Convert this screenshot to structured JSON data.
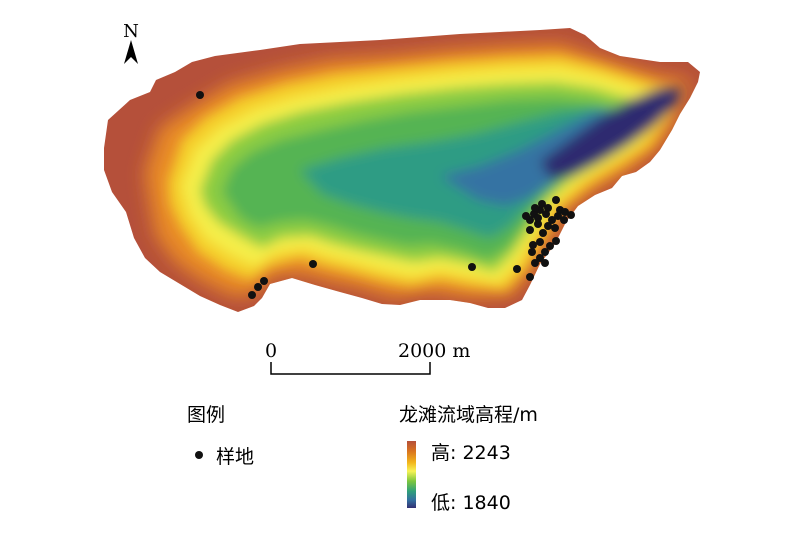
{
  "north_arrow": {
    "label": "N"
  },
  "scale_bar": {
    "start_label": "0",
    "end_label": "2000 m"
  },
  "legend": {
    "title": "图例",
    "items": [
      {
        "symbol": "black-dot",
        "label": "样地"
      }
    ]
  },
  "elevation_legend": {
    "title": "龙滩流域高程/m",
    "high_label": "高: 2243",
    "low_label": "低: 1840",
    "high_value": 2243,
    "low_value": 1840,
    "unit": "m",
    "color_ramp": [
      "#b5503a",
      "#d9731f",
      "#f2b51c",
      "#f7f356",
      "#7cc63e",
      "#2fa07b",
      "#3370a0",
      "#333073"
    ]
  },
  "colors": {
    "high": "#b5503a",
    "orange": "#e88a27",
    "yellow": "#f5ee4a",
    "green": "#6cc048",
    "teal": "#2f9c84",
    "blue": "#3573a3",
    "low": "#2f2c70",
    "plot_point": "#111111"
  },
  "sample_plot_count": 38
}
